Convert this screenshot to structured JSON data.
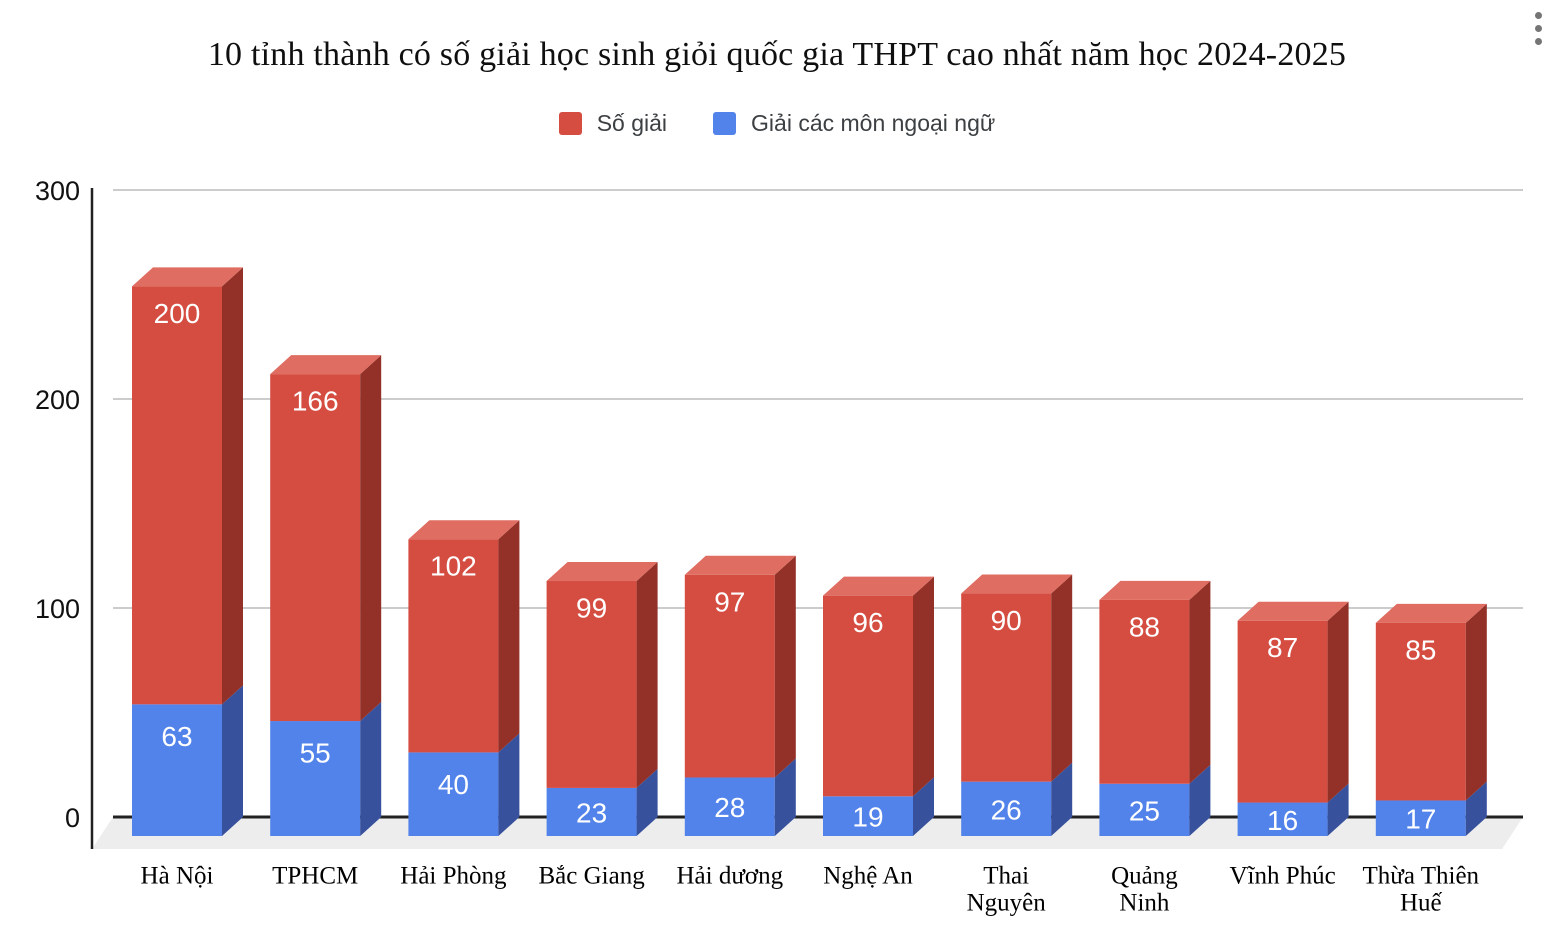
{
  "header": {
    "more_options_icon": "kebab-vertical"
  },
  "chart_data": {
    "type": "bar",
    "variant": "3d-stacked-column",
    "title": "10 tỉnh thành có số giải học sinh giỏi quốc gia THPT cao nhất năm học 2024-2025",
    "categories": [
      "Hà Nội",
      "TPHCM",
      "Hải Phòng",
      "Bắc Giang",
      "Hải dương",
      "Nghệ An",
      "Thai Nguyên",
      "Quảng Ninh",
      "Vĩnh Phúc",
      "Thừa Thiên Huế"
    ],
    "category_label_lines": [
      [
        "Hà Nội"
      ],
      [
        "TPHCM"
      ],
      [
        "Hải Phòng"
      ],
      [
        "Bắc Giang"
      ],
      [
        "Hải dương"
      ],
      [
        "Nghệ An"
      ],
      [
        "Thai",
        "Nguyên"
      ],
      [
        "Quảng",
        "Ninh"
      ],
      [
        "Vĩnh Phúc"
      ],
      [
        "Thừa Thiên",
        "Huế"
      ]
    ],
    "series": [
      {
        "name": "Số giải",
        "values": [
          200,
          166,
          102,
          99,
          97,
          96,
          90,
          88,
          87,
          85
        ],
        "color": {
          "front": "#d54d41",
          "top": "#df6d61",
          "side": "#933128"
        }
      },
      {
        "name": "Giải các môn ngoại ngữ",
        "values": [
          63,
          55,
          40,
          23,
          28,
          19,
          26,
          25,
          16,
          17
        ],
        "color": {
          "front": "#5283ea",
          "top": "#6b95ee",
          "side": "#37519c"
        }
      }
    ],
    "stacked": true,
    "stack_bottom_series": 1,
    "ylim": [
      0,
      300
    ],
    "yticks": [
      0,
      100,
      200,
      300
    ],
    "grid": true,
    "legend_position": "top",
    "style": {
      "gridline_color": "#cccccc",
      "baseline_color": "#212121",
      "axis_color": "#212121",
      "floor_color": "#ededed",
      "value_label_color": "#ffffff",
      "background": "#ffffff"
    }
  }
}
